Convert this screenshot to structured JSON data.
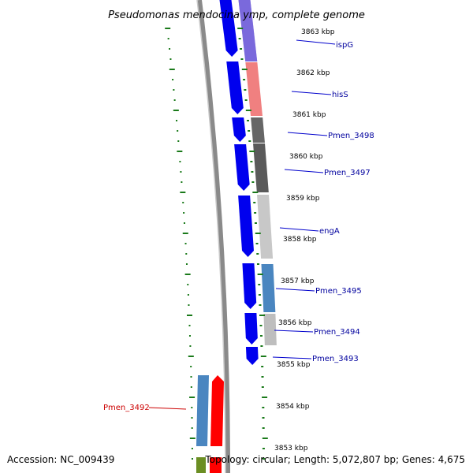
{
  "title": "Pseudomonas mendocina ymp, complete genome",
  "footer": {
    "accession": "Accession: NC_009439",
    "summary": "Topology: circular; Length: 5,072,807 bp; Genes: 4,675"
  },
  "colors": {
    "forward_cds": "#0000ee",
    "backbone": "#8a8a8a",
    "tick": "#1a7a1a",
    "label_blue": "#00009e",
    "label_red": "#cc0000"
  },
  "scale": {
    "unit": "kbp",
    "labels": [
      {
        "kbp": 3863,
        "text": "3863 kbp"
      },
      {
        "kbp": 3862,
        "text": "3862 kbp"
      },
      {
        "kbp": 3861,
        "text": "3861 kbp"
      },
      {
        "kbp": 3860,
        "text": "3860 kbp"
      },
      {
        "kbp": 3859,
        "text": "3859 kbp"
      },
      {
        "kbp": 3858,
        "text": "3858 kbp"
      },
      {
        "kbp": 3857,
        "text": "3857 kbp"
      },
      {
        "kbp": 3856,
        "text": "3856 kbp"
      },
      {
        "kbp": 3855,
        "text": "3855 kbp"
      },
      {
        "kbp": 3854,
        "text": "3854 kbp"
      },
      {
        "kbp": 3853,
        "text": "3853 kbp"
      }
    ]
  },
  "genes": [
    {
      "name": "ispG",
      "label_color": "blue",
      "color": "#7060d8"
    },
    {
      "name": "hisS",
      "label_color": "blue",
      "color": "#f08080"
    },
    {
      "name": "Pmen_3498",
      "label_color": "blue",
      "color": "#666666"
    },
    {
      "name": "Pmen_3497",
      "label_color": "blue",
      "color": "#5a5a5a"
    },
    {
      "name": "engA",
      "label_color": "blue",
      "color": "#c8c8c8"
    },
    {
      "name": "Pmen_3495",
      "label_color": "blue",
      "color": "#4a86c0"
    },
    {
      "name": "Pmen_3494",
      "label_color": "blue",
      "color": "#bebebe"
    },
    {
      "name": "Pmen_3493",
      "label_color": "blue",
      "color": "#0000ee"
    },
    {
      "name": "Pmen_3492",
      "label_color": "red",
      "color": "#ff0000"
    }
  ]
}
